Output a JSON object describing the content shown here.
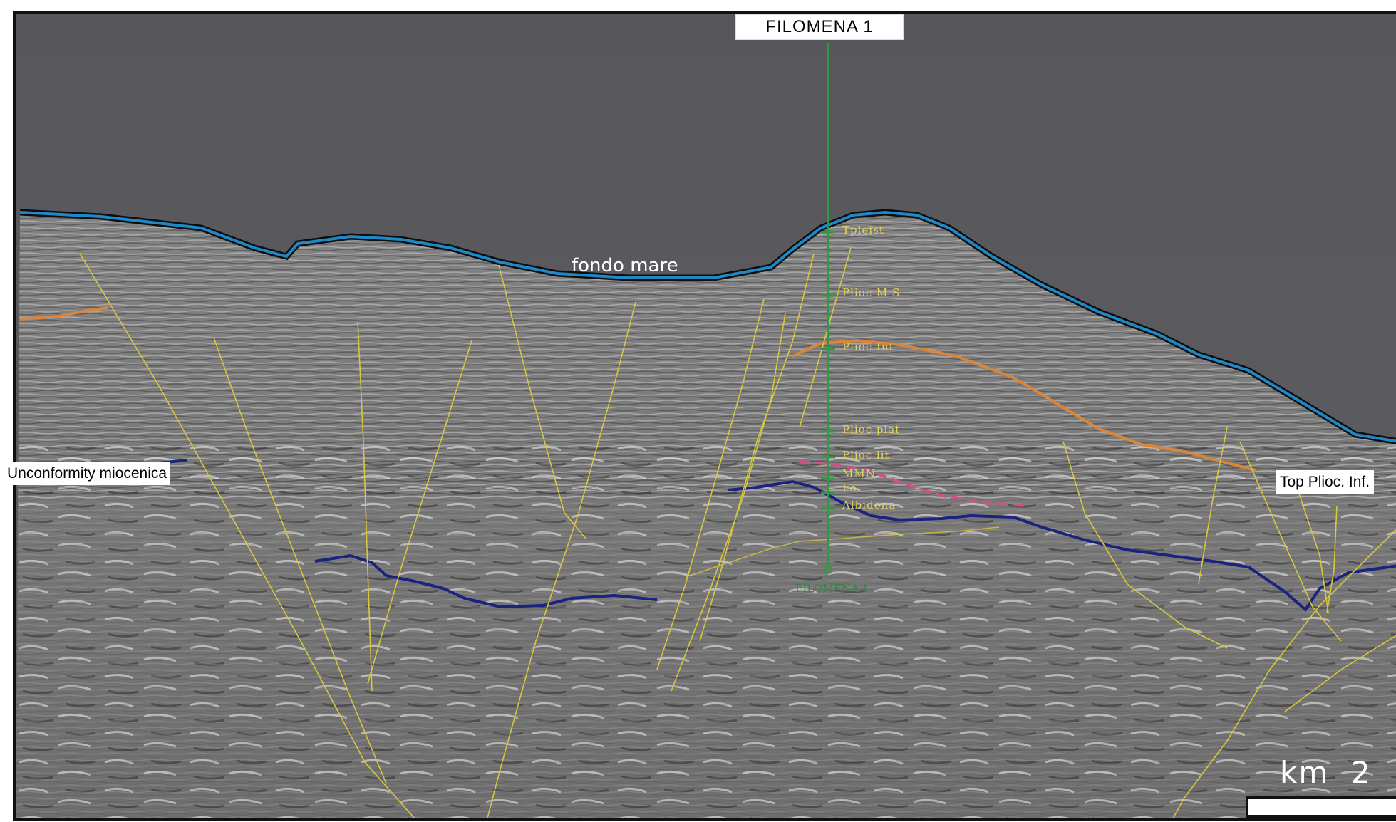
{
  "well": {
    "title": "FILOMENA 1",
    "bottom_label": "FILOMENA 1",
    "picks": [
      {
        "label": "Tpleist"
      },
      {
        "label": "Plioc M S"
      },
      {
        "label": "Plioc Inf"
      },
      {
        "label": "Plioc plat"
      },
      {
        "label": "Plioc lit"
      },
      {
        "label": "MMN"
      },
      {
        "label": "Fo"
      },
      {
        "label": "Albidona"
      }
    ]
  },
  "horizons": {
    "seafloor": "fondo mare",
    "unconformity": "Unconformity miocenica",
    "top_plioc": "Top Plioc. Inf."
  },
  "scale": {
    "unit": "km",
    "value": "2"
  },
  "colors": {
    "seafloor": "#1e88c8",
    "unconformity": "#1a237e",
    "top_plioc": "#d8863a",
    "faults": "#d9c83a",
    "well": "#2e9b3e",
    "marker": "#d0508a",
    "water": "#58585c"
  }
}
